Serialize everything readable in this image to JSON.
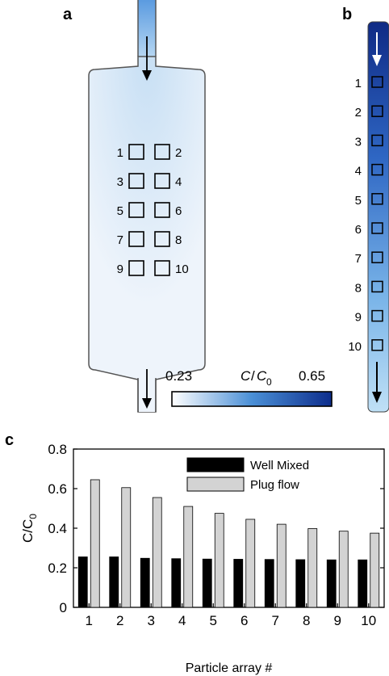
{
  "panel_labels": {
    "a": "a",
    "b": "b",
    "c": "c"
  },
  "colorbar": {
    "label_c": "C",
    "label_slash": "/",
    "label_c0": "C",
    "label_sub": "0",
    "min_label": "0.23",
    "max_label": "0.65",
    "color_low": "#ffffff",
    "color_high": "#0d2d8c"
  },
  "panel_a": {
    "particle_arrays": [
      "1",
      "2",
      "3",
      "4",
      "5",
      "6",
      "7",
      "8",
      "9",
      "10"
    ],
    "chamber_fill": "#eaf2fb",
    "inlet_color": "#5f9fdc"
  },
  "panel_b": {
    "particle_arrays": [
      "1",
      "2",
      "3",
      "4",
      "5",
      "6",
      "7",
      "8",
      "9",
      "10"
    ],
    "color_top": "#12308f",
    "color_bottom": "#a9d2f0"
  },
  "chart_data": {
    "type": "bar",
    "categories": [
      "1",
      "2",
      "3",
      "4",
      "5",
      "6",
      "7",
      "8",
      "9",
      "10"
    ],
    "series": [
      {
        "name": "Well Mixed",
        "color": "#000000",
        "values": [
          0.255,
          0.255,
          0.248,
          0.246,
          0.244,
          0.243,
          0.242,
          0.241,
          0.24,
          0.24
        ]
      },
      {
        "name": "Plug flow",
        "color": "#d3d3d3",
        "values": [
          0.645,
          0.605,
          0.555,
          0.51,
          0.475,
          0.445,
          0.42,
          0.398,
          0.385,
          0.375
        ]
      }
    ],
    "ylim": [
      0,
      0.8
    ],
    "yticks": [
      "0",
      "0.2",
      "0.4",
      "0.6",
      "0.8"
    ],
    "xlabel": "Particle array #",
    "ylabel_main": "C/C",
    "ylabel_sub": "0",
    "legend_position": "top-right"
  }
}
